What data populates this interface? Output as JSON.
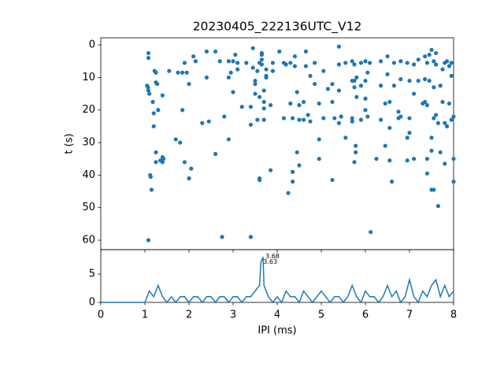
{
  "chart_data": [
    {
      "type": "scatter",
      "title": "20230405_222136UTC_V12",
      "y_label": "t (s)",
      "color": "#1f77b4",
      "xlim": [
        0,
        8
      ],
      "xticks": [
        0,
        1,
        2,
        3,
        4,
        5,
        6,
        7,
        8
      ],
      "show_xtick_labels": false,
      "ylim": [
        -2.2,
        62.9
      ],
      "y_inverted": true,
      "yticks": [
        0,
        10,
        20,
        30,
        40,
        50,
        60
      ],
      "x": [
        1.05,
        1.08,
        1.08,
        1.07,
        1.08,
        1.1,
        1.12,
        1.13,
        1.08,
        1.15,
        1.18,
        1.2,
        1.22,
        1.2,
        1.25,
        1.25,
        1.28,
        1.25,
        1.25,
        1.3,
        1.35,
        1.4,
        1.4,
        1.4,
        1.42,
        1.55,
        1.7,
        1.75,
        1.8,
        1.85,
        1.85,
        1.9,
        1.9,
        1.95,
        2.0,
        2.0,
        2.05,
        2.1,
        2.15,
        2.3,
        2.4,
        2.4,
        2.45,
        2.6,
        2.6,
        2.7,
        2.75,
        2.8,
        2.9,
        2.9,
        2.9,
        2.95,
        3.0,
        3.0,
        3.05,
        3.1,
        3.1,
        3.2,
        3.3,
        3.4,
        3.4,
        3.4,
        3.45,
        3.45,
        3.5,
        3.5,
        3.5,
        3.55,
        3.55,
        3.6,
        3.6,
        3.6,
        3.6,
        3.65,
        3.65,
        3.65,
        3.65,
        3.7,
        3.7,
        3.7,
        3.7,
        3.75,
        3.75,
        3.75,
        3.85,
        3.85,
        3.9,
        3.9,
        4.05,
        4.15,
        4.15,
        4.2,
        4.25,
        4.3,
        4.3,
        4.35,
        4.35,
        4.35,
        4.4,
        4.4,
        4.45,
        4.45,
        4.5,
        4.5,
        4.5,
        4.6,
        4.6,
        4.65,
        4.65,
        4.7,
        4.75,
        4.75,
        4.85,
        4.85,
        4.95,
        4.95,
        4.95,
        5.05,
        5.05,
        5.15,
        5.25,
        5.25,
        5.25,
        5.3,
        5.4,
        5.4,
        5.4,
        5.4,
        5.45,
        5.55,
        5.55,
        5.7,
        5.7,
        5.7,
        5.7,
        5.75,
        5.75,
        5.75,
        5.75,
        5.78,
        5.78,
        5.8,
        5.8,
        5.9,
        5.9,
        5.9,
        6.0,
        6.0,
        6.0,
        6.0,
        6.05,
        6.05,
        6.1,
        6.12,
        6.25,
        6.35,
        6.35,
        6.35,
        6.45,
        6.45,
        6.5,
        6.5,
        6.55,
        6.55,
        6.55,
        6.6,
        6.65,
        6.65,
        6.75,
        6.75,
        6.8,
        6.8,
        6.8,
        6.95,
        6.95,
        6.95,
        7.0,
        7.0,
        7.0,
        7.1,
        7.1,
        7.1,
        7.2,
        7.2,
        7.3,
        7.35,
        7.35,
        7.35,
        7.4,
        7.4,
        7.4,
        7.4,
        7.45,
        7.45,
        7.5,
        7.5,
        7.5,
        7.5,
        7.55,
        7.55,
        7.55,
        7.55,
        7.6,
        7.6,
        7.6,
        7.65,
        7.65,
        7.7,
        7.7,
        7.75,
        7.75,
        7.8,
        7.8,
        7.8,
        7.85,
        7.85,
        7.9,
        7.9,
        7.95,
        7.95,
        7.95,
        8.0,
        8.0,
        8.0
      ],
      "values": [
        12.5,
        2.5,
        4,
        13,
        14,
        15,
        40,
        40.5,
        60,
        44.5,
        17.5,
        25,
        8,
        21,
        8.5,
        11.5,
        12,
        33,
        36,
        20,
        35.5,
        15.5,
        34.5,
        36,
        35,
        8,
        29,
        8.5,
        30,
        8.5,
        20,
        5.5,
        36,
        8.5,
        12,
        41,
        38,
        3.5,
        5,
        24,
        2,
        10,
        23.5,
        2,
        33.5,
        5,
        59,
        22,
        5,
        29,
        10,
        8.5,
        5,
        14.5,
        3,
        5.5,
        7.5,
        19,
        5.5,
        59,
        19,
        24.5,
        7,
        1,
        11,
        12,
        15,
        8,
        23,
        5.5,
        16,
        41,
        41.5,
        2.5,
        3,
        4.5,
        6,
        14,
        17.5,
        23,
        19.5,
        7.5,
        9.5,
        10,
        18.5,
        38.5,
        5.5,
        8,
        2,
        22.5,
        5.5,
        6,
        45.5,
        18,
        5.5,
        39,
        22.5,
        42,
        3.5,
        6.5,
        14.5,
        33,
        18.5,
        23,
        37,
        23,
        17.5,
        6.5,
        2,
        21.5,
        23.5,
        9.5,
        5.5,
        12,
        35,
        29,
        18,
        8,
        22.5,
        13.5,
        12,
        17.5,
        41.5,
        22.5,
        0.5,
        14,
        24,
        6,
        22,
        5.5,
        28.5,
        5,
        11,
        22.5,
        23.5,
        6,
        11,
        13,
        36,
        31,
        33,
        10,
        16,
        5.5,
        12.5,
        23,
        5,
        11,
        16.5,
        20,
        8.5,
        22,
        5.5,
        57.5,
        35,
        5,
        12.5,
        23,
        18,
        31,
        3.5,
        9,
        17.5,
        25.5,
        35.5,
        42,
        5.5,
        12.5,
        22.5,
        20.5,
        22,
        10.5,
        5,
        5.5,
        28.5,
        35.5,
        11,
        27,
        22.5,
        6,
        15,
        35,
        4.5,
        11,
        18,
        3.5,
        17.5,
        10.5,
        5.5,
        39.5,
        18.5,
        35,
        11,
        3,
        28.5,
        44.5,
        32.5,
        1.5,
        22.5,
        44.5,
        5,
        13,
        21.5,
        2.5,
        6,
        49.5,
        24,
        12.5,
        33,
        7.5,
        17.5,
        5.5,
        24,
        36.5,
        5,
        25,
        6.5,
        18,
        5.5,
        9.5,
        23,
        22,
        35,
        42
      ]
    },
    {
      "type": "line",
      "x_label": "IPI (ms)",
      "color": "#1f77b4",
      "xlim": [
        0,
        8
      ],
      "xticks": [
        0,
        1,
        2,
        3,
        4,
        5,
        6,
        7,
        8
      ],
      "show_xtick_labels": true,
      "ylim": [
        0,
        9.3
      ],
      "yticks": [
        0,
        5
      ],
      "x": [
        0,
        0.1,
        0.2,
        0.3,
        0.4,
        0.5,
        0.6,
        0.7,
        0.8,
        0.9,
        1.0,
        1.1,
        1.2,
        1.3,
        1.4,
        1.5,
        1.6,
        1.7,
        1.8,
        1.9,
        2.0,
        2.1,
        2.2,
        2.3,
        2.4,
        2.5,
        2.6,
        2.7,
        2.8,
        2.9,
        3.0,
        3.1,
        3.2,
        3.3,
        3.4,
        3.5,
        3.6,
        3.63,
        3.68,
        3.7,
        3.8,
        3.9,
        4.0,
        4.1,
        4.2,
        4.3,
        4.4,
        4.5,
        4.6,
        4.7,
        4.8,
        4.9,
        5.0,
        5.1,
        5.2,
        5.3,
        5.4,
        5.5,
        5.6,
        5.7,
        5.8,
        5.9,
        6.0,
        6.1,
        6.2,
        6.3,
        6.4,
        6.5,
        6.6,
        6.7,
        6.8,
        6.9,
        7.0,
        7.1,
        7.2,
        7.3,
        7.4,
        7.5,
        7.6,
        7.7,
        7.8,
        7.9,
        8.0
      ],
      "values": [
        0,
        0,
        0,
        0,
        0,
        0,
        0,
        0,
        0,
        0,
        0,
        2,
        1,
        3,
        1,
        0,
        1,
        0,
        1,
        1,
        0,
        1,
        1,
        0,
        1,
        1,
        0,
        1,
        1,
        0,
        1,
        1,
        0,
        1,
        1,
        2,
        3,
        7,
        8,
        3,
        1,
        0,
        1,
        0,
        2,
        1,
        1,
        0,
        2,
        1,
        0,
        1,
        2,
        1,
        0,
        1,
        1,
        0,
        1,
        3,
        1,
        0,
        2,
        1,
        1,
        0,
        1,
        3,
        1,
        2,
        0,
        1,
        4,
        1,
        0,
        2,
        1,
        3,
        4,
        1,
        3,
        1,
        2
      ],
      "annotations": [
        {
          "label": "3.68",
          "x": 3.68,
          "y": 8
        },
        {
          "label": "3.63",
          "x": 3.63,
          "y": 7
        }
      ]
    }
  ]
}
